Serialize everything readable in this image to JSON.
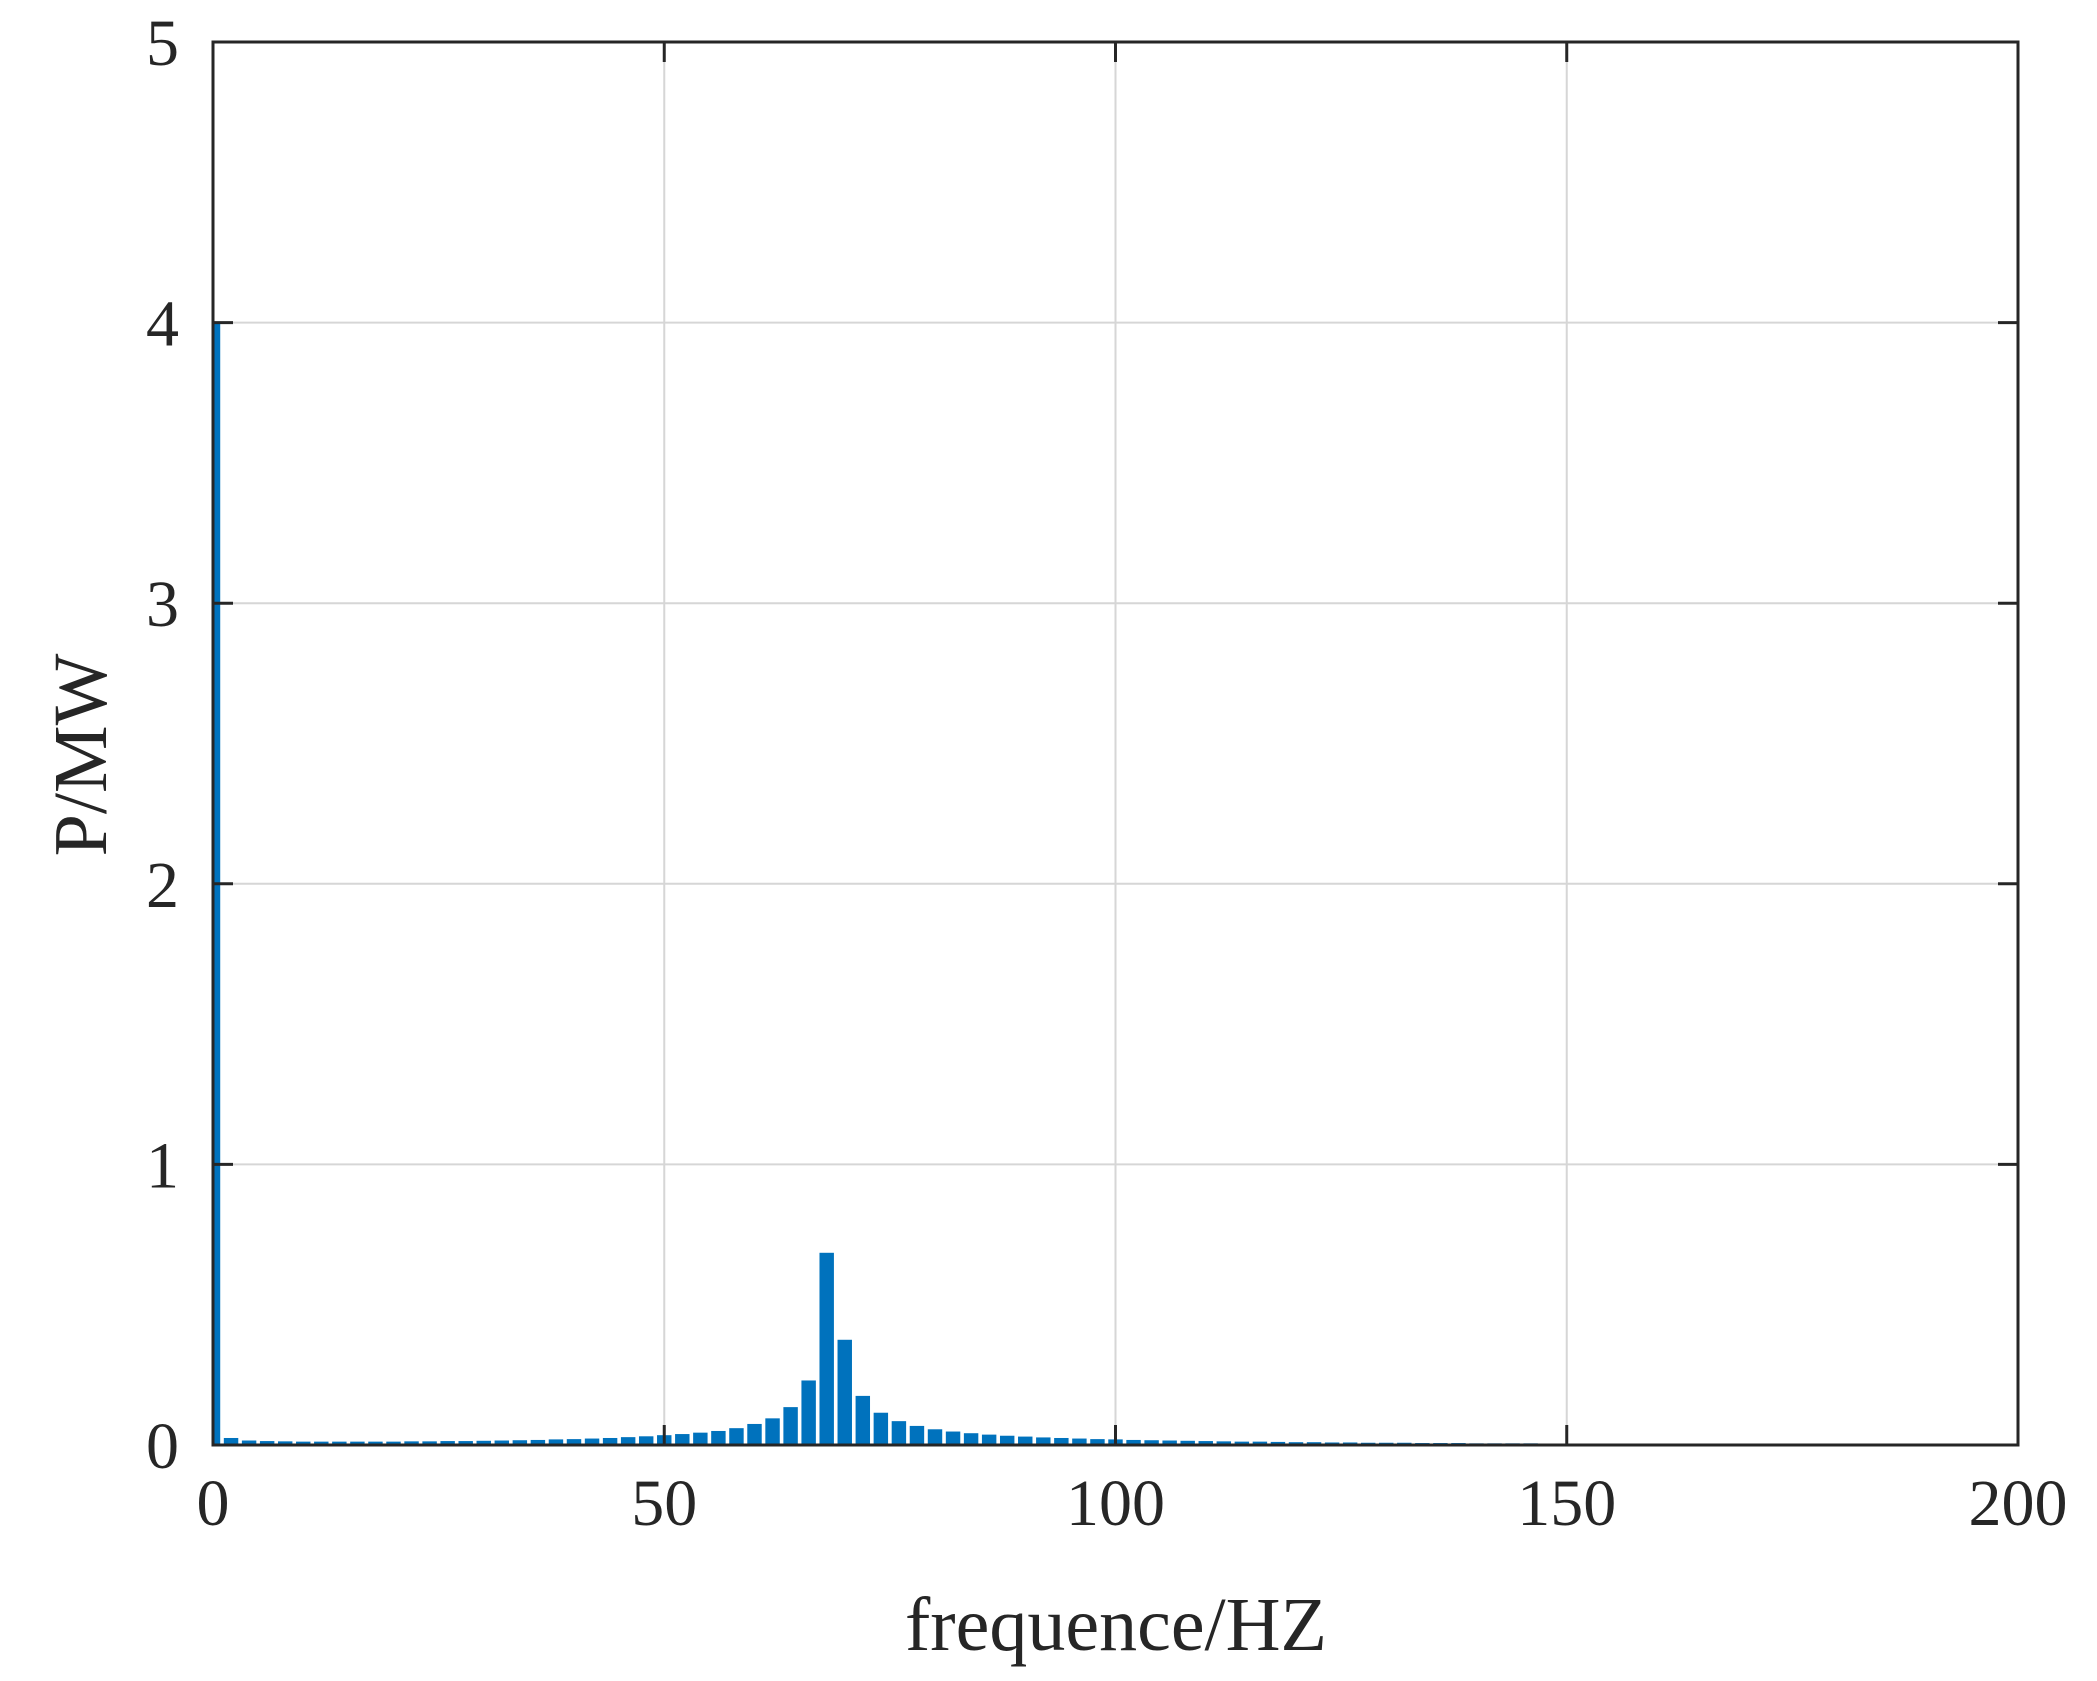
{
  "chart_data": {
    "type": "bar",
    "title": "",
    "xlabel": "frequence/HZ",
    "ylabel": "P/MW",
    "xlim": [
      0,
      200
    ],
    "ylim": [
      0,
      5
    ],
    "xticks": [
      "0",
      "50",
      "100",
      "150",
      "200"
    ],
    "yticks": [
      "0",
      "1",
      "2",
      "3",
      "4",
      "5"
    ],
    "grid": true,
    "bar_color": "#0072BD",
    "bar_width": 1.6,
    "x": [
      0,
      2,
      4,
      6,
      8,
      10,
      12,
      14,
      16,
      18,
      20,
      22,
      24,
      26,
      28,
      30,
      32,
      34,
      36,
      38,
      40,
      42,
      44,
      46,
      48,
      50,
      52,
      54,
      56,
      58,
      60,
      62,
      64,
      66,
      68,
      70,
      72,
      74,
      76,
      78,
      80,
      82,
      84,
      86,
      88,
      90,
      92,
      94,
      96,
      98,
      100,
      102,
      104,
      106,
      108,
      110,
      112,
      114,
      116,
      118,
      120,
      122,
      124,
      126,
      128,
      130,
      132,
      134,
      136,
      138,
      140,
      142,
      144,
      146,
      148,
      150,
      152,
      154,
      156,
      158,
      160,
      162,
      164,
      166,
      168,
      170,
      172,
      174,
      176,
      178,
      180,
      182,
      184,
      186,
      188,
      190,
      192,
      194,
      196,
      198,
      200
    ],
    "values": [
      4.0,
      0.025,
      0.016,
      0.014,
      0.013,
      0.012,
      0.012,
      0.012,
      0.012,
      0.012,
      0.012,
      0.013,
      0.013,
      0.014,
      0.014,
      0.015,
      0.016,
      0.017,
      0.018,
      0.02,
      0.021,
      0.023,
      0.025,
      0.028,
      0.031,
      0.035,
      0.039,
      0.044,
      0.05,
      0.06,
      0.075,
      0.095,
      0.135,
      0.23,
      0.685,
      0.375,
      0.175,
      0.115,
      0.085,
      0.068,
      0.056,
      0.048,
      0.042,
      0.037,
      0.033,
      0.03,
      0.027,
      0.025,
      0.023,
      0.021,
      0.02,
      0.018,
      0.017,
      0.016,
      0.015,
      0.014,
      0.013,
      0.012,
      0.012,
      0.011,
      0.01,
      0.01,
      0.009,
      0.009,
      0.008,
      0.008,
      0.008,
      0.007,
      0.007,
      0.007,
      0.006,
      0.006,
      0.006,
      0.006,
      0.005,
      0.005,
      0.005,
      0.005,
      0.005,
      0.004,
      0.004,
      0.004,
      0.004,
      0.004,
      0.004,
      0.004,
      0.003,
      0.003,
      0.003,
      0.003,
      0.003,
      0.003,
      0.003,
      0.003,
      0.003,
      0.003,
      0.003,
      0.002,
      0.002,
      0.002,
      0.002
    ]
  }
}
